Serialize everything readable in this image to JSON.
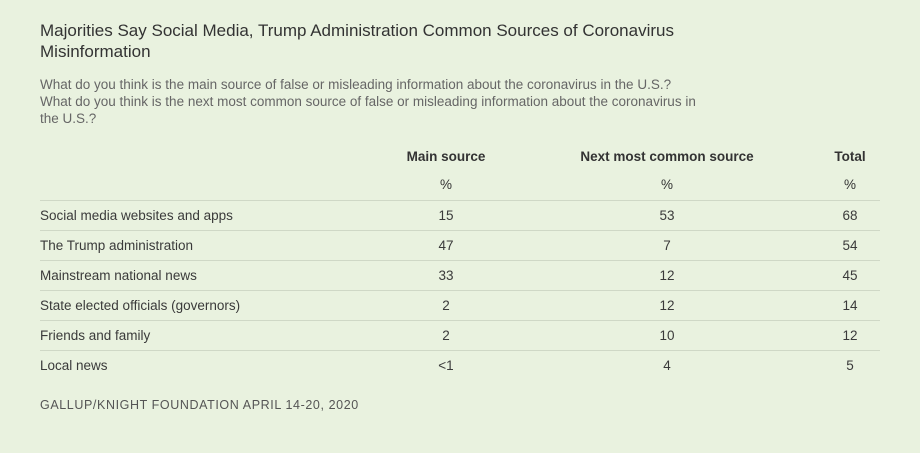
{
  "title": "Majorities Say Social Media, Trump Administration Common Sources of Coronavirus Misinformation",
  "subtitle_lines": [
    "What do you think is the main source of false or misleading information about the coronavirus in the U.S.?",
    "What do you think is the next most common source of false or misleading information about the coronavirus in",
    "the U.S.?"
  ],
  "source": "GALLUP/KNIGHT FOUNDATION APRIL 14-20, 2020",
  "chart_data": {
    "type": "table",
    "columns": [
      "Main source",
      "Next most common source",
      "Total"
    ],
    "units": [
      "%",
      "%",
      "%"
    ],
    "rows": [
      {
        "label": "Social media websites and apps",
        "values": [
          "15",
          "53",
          "68"
        ]
      },
      {
        "label": "The Trump administration",
        "values": [
          "47",
          "7",
          "54"
        ]
      },
      {
        "label": "Mainstream national news",
        "values": [
          "33",
          "12",
          "45"
        ]
      },
      {
        "label": "State elected officials (governors)",
        "values": [
          "2",
          "12",
          "14"
        ]
      },
      {
        "label": "Friends and family",
        "values": [
          "2",
          "10",
          "12"
        ]
      },
      {
        "label": "Local news",
        "values": [
          "<1",
          "4",
          "5"
        ]
      }
    ]
  },
  "colors": {
    "background": "#e9f2df",
    "rule": "#cfd8c6",
    "text": "#3a3a3a"
  }
}
